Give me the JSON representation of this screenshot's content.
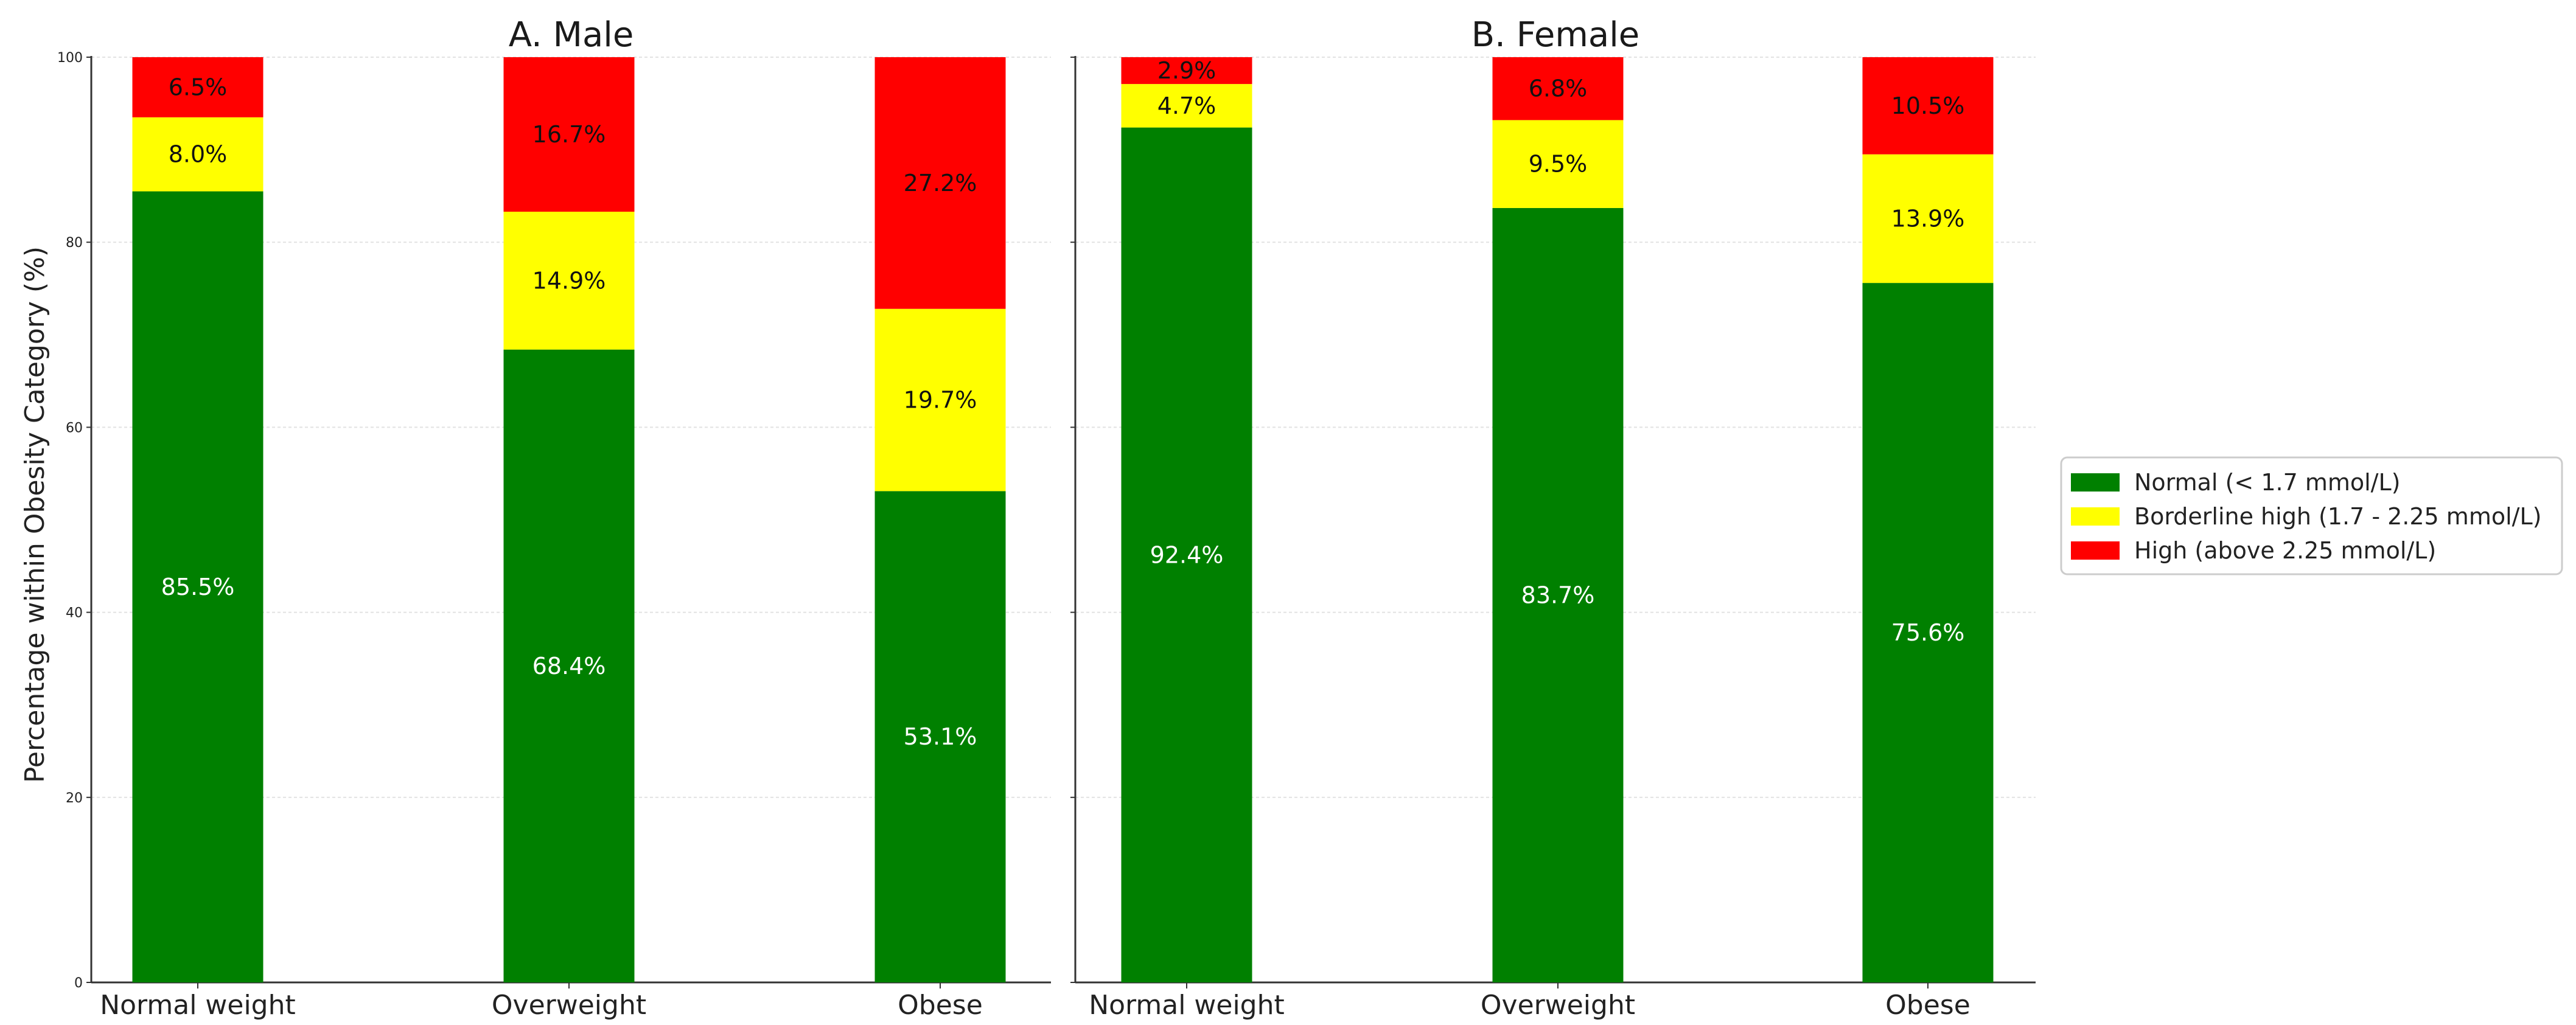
{
  "chart_data": {
    "type": "bar",
    "stacked": true,
    "ylabel": "Percentage within Obesity Category (%)",
    "ylim": [
      0,
      100
    ],
    "yticks": [
      "0",
      "20",
      "40",
      "60",
      "80",
      "100"
    ],
    "grid": true,
    "legend": {
      "placement": "right",
      "entries": [
        {
          "label": "Normal (< 1.7 mmol/L)",
          "color": "#008000"
        },
        {
          "label": "Borderline high (1.7 - 2.25 mmol/L)",
          "color": "#ffff00"
        },
        {
          "label": "High (above 2.25 mmol/L)",
          "color": "#ff0000"
        }
      ]
    },
    "panels": [
      {
        "title": "A. Male",
        "categories": [
          "Normal weight",
          "Overweight",
          "Obese"
        ],
        "series": [
          {
            "name": "Normal (< 1.7 mmol/L)",
            "values": [
              85.5,
              68.4,
              53.1
            ],
            "labels": [
              "85.5%",
              "68.4%",
              "53.1%"
            ]
          },
          {
            "name": "Borderline high (1.7 - 2.25 mmol/L)",
            "values": [
              8.0,
              14.9,
              19.7
            ],
            "labels": [
              "8.0%",
              "14.9%",
              "19.7%"
            ]
          },
          {
            "name": "High (above 2.25 mmol/L)",
            "values": [
              6.5,
              16.7,
              27.2
            ],
            "labels": [
              "6.5%",
              "16.7%",
              "27.2%"
            ]
          }
        ]
      },
      {
        "title": "B. Female",
        "categories": [
          "Normal weight",
          "Overweight",
          "Obese"
        ],
        "series": [
          {
            "name": "Normal (< 1.7 mmol/L)",
            "values": [
              92.4,
              83.7,
              75.6
            ],
            "labels": [
              "92.4%",
              "83.7%",
              "75.6%"
            ]
          },
          {
            "name": "Borderline high (1.7 - 2.25 mmol/L)",
            "values": [
              4.7,
              9.5,
              13.9
            ],
            "labels": [
              "4.7%",
              "9.5%",
              "13.9%"
            ]
          },
          {
            "name": "High (above 2.25 mmol/L)",
            "values": [
              2.9,
              6.8,
              10.5
            ],
            "labels": [
              "2.9%",
              "6.8%",
              "10.5%"
            ]
          }
        ]
      }
    ]
  }
}
